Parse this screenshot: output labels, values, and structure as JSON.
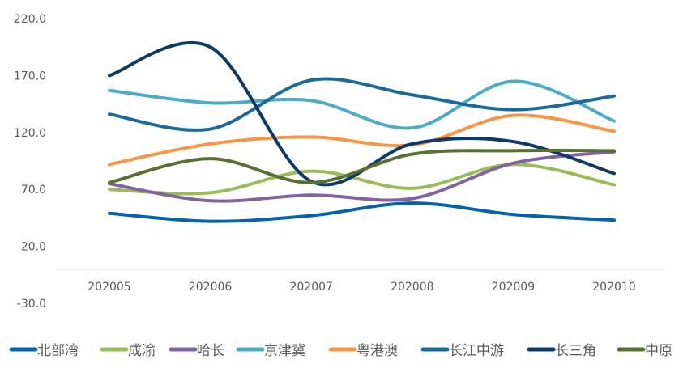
{
  "chart_data": {
    "type": "line",
    "smooth": true,
    "categories": [
      "202005",
      "202006",
      "202007",
      "202008",
      "202009",
      "202010"
    ],
    "ylim": [
      -30,
      220
    ],
    "yticks": [
      "220.0",
      "170.0",
      "120.0",
      "70.0",
      "20.0",
      "-30.0"
    ],
    "ytick_values": [
      220,
      170,
      120,
      70,
      20,
      -30
    ],
    "grid": false,
    "legend_position": "bottom",
    "series": [
      {
        "name": "北部湾",
        "color": "#0563ab",
        "values": [
          49,
          42,
          47,
          58,
          48,
          43
        ]
      },
      {
        "name": "成渝",
        "color": "#9bbb59",
        "values": [
          70,
          67,
          86,
          71,
          92,
          74
        ]
      },
      {
        "name": "哈长",
        "color": "#8064a2",
        "values": [
          75,
          60,
          65,
          62,
          93,
          103
        ]
      },
      {
        "name": "京津冀",
        "color": "#4bacc6",
        "values": [
          157,
          146,
          148,
          124,
          165,
          130
        ]
      },
      {
        "name": "粤港澳",
        "color": "#f79646",
        "values": [
          92,
          110,
          116,
          109,
          135,
          121
        ]
      },
      {
        "name": "长江中游",
        "color": "#1a6a9a",
        "values": [
          136,
          123,
          166,
          153,
          140,
          152
        ]
      },
      {
        "name": "长三角",
        "color": "#0d3b66",
        "values": [
          170,
          195,
          77,
          110,
          112,
          84
        ]
      },
      {
        "name": "中原",
        "color": "#5a7032",
        "values": [
          76,
          97,
          76,
          101,
          104,
          104
        ]
      }
    ]
  }
}
